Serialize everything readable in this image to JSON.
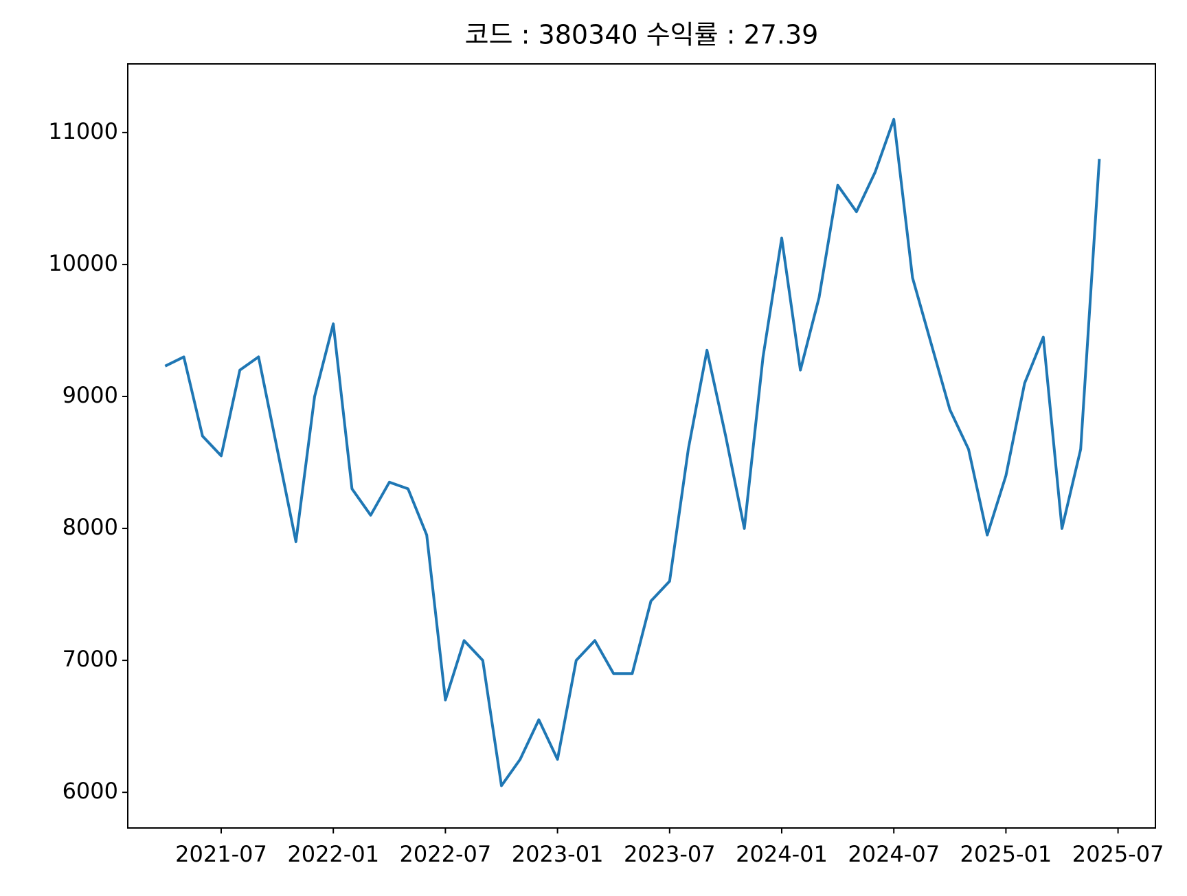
{
  "chart_data": {
    "type": "line",
    "title": "코드 : 380340 수익률 : 27.39",
    "x": [
      "2021-04",
      "2021-05",
      "2021-06",
      "2021-07",
      "2021-08",
      "2021-09",
      "2021-10",
      "2021-11",
      "2021-12",
      "2022-01",
      "2022-02",
      "2022-03",
      "2022-04",
      "2022-05",
      "2022-06",
      "2022-07",
      "2022-08",
      "2022-09",
      "2022-10",
      "2022-11",
      "2022-12",
      "2023-01",
      "2023-02",
      "2023-03",
      "2023-04",
      "2023-05",
      "2023-06",
      "2023-07",
      "2023-08",
      "2023-09",
      "2023-10",
      "2023-11",
      "2023-12",
      "2024-01",
      "2024-02",
      "2024-03",
      "2024-04",
      "2024-05",
      "2024-06",
      "2024-07",
      "2024-08",
      "2024-09",
      "2024-10",
      "2024-11",
      "2024-12",
      "2025-01",
      "2025-02",
      "2025-03",
      "2025-04",
      "2025-05",
      "2025-06"
    ],
    "values": [
      9230,
      9300,
      8700,
      8550,
      9200,
      9300,
      8600,
      7900,
      9000,
      9550,
      8300,
      8100,
      8350,
      8300,
      7950,
      6700,
      7150,
      7000,
      6050,
      6250,
      6550,
      6250,
      7000,
      7150,
      6900,
      6900,
      7450,
      7600,
      8600,
      9350,
      8700,
      8000,
      9300,
      10200,
      9200,
      9750,
      10600,
      10400,
      10700,
      11100,
      9900,
      9400,
      8900,
      8600,
      7950,
      8400,
      9100,
      9450,
      8000,
      8600,
      10800
    ],
    "color": "#1f77b4",
    "xlim": [
      "2021-02",
      "2025-09"
    ],
    "xticks": [
      "2021-07",
      "2022-01",
      "2022-07",
      "2023-01",
      "2023-07",
      "2024-01",
      "2024-07",
      "2025-01",
      "2025-07"
    ],
    "ylim": [
      5730,
      11520
    ],
    "yticks": [
      6000,
      7000,
      8000,
      9000,
      10000,
      11000
    ]
  }
}
